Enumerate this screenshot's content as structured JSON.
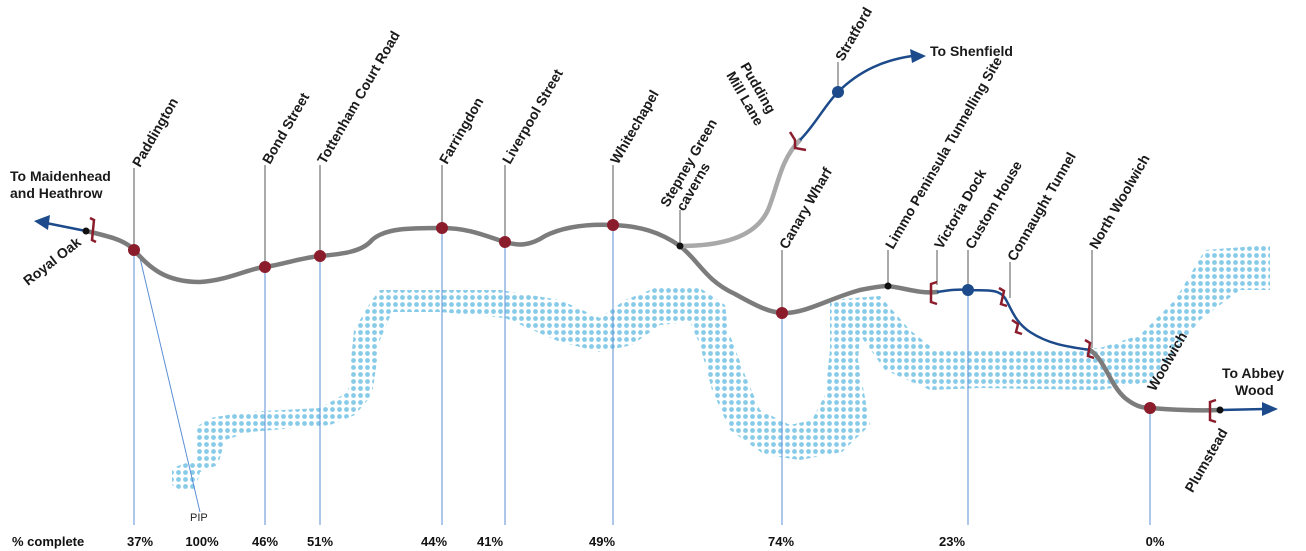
{
  "colors": {
    "line_grey": "#7c7c7c",
    "branch_grey": "#a9a9a9",
    "eastern_blue": "#1c4a8a",
    "station_red": "#8b1c2c",
    "river_blue": "#87cbe8",
    "guide_blue": "#5b8fd6",
    "leader_grey": "#555555"
  },
  "destinations": {
    "west": [
      "To Maidenhead",
      "and Heathrow"
    ],
    "shenfield": "To Shenfield",
    "abbey_wood": [
      "To Abbey",
      "Wood"
    ]
  },
  "stations": {
    "royal_oak": "Royal Oak",
    "paddington": "Paddington",
    "bond_street": "Bond Street",
    "tottenham_court_road": "Tottenham Court Road",
    "farringdon": "Farringdon",
    "liverpool_street": "Liverpool Street",
    "whitechapel": "Whitechapel",
    "stepney_green": [
      "Stepney Green",
      "caverns"
    ],
    "pudding_mill_lane": [
      "Pudding",
      "Mill Lane"
    ],
    "stratford": "Stratford",
    "canary_wharf": "Canary Wharf",
    "limmo": "Limmo Peninsula Tunnelling Site",
    "victoria_dock": "Victoria Dock",
    "custom_house": "Custom House",
    "connaught_tunnel": "Connaught Tunnel",
    "north_woolwich": "North Woolwich",
    "woolwich": "Woolwich",
    "plumstead": "Plumstead"
  },
  "progress": {
    "header": "% complete",
    "pip_label": "PIP",
    "values": {
      "paddington": "37%",
      "pip": "100%",
      "bond_street": "46%",
      "tottenham_court_road": "51%",
      "farringdon": "44%",
      "liverpool_street": "41%",
      "whitechapel": "49%",
      "canary_wharf": "74%",
      "custom_house": "23%",
      "woolwich": "0%"
    }
  }
}
